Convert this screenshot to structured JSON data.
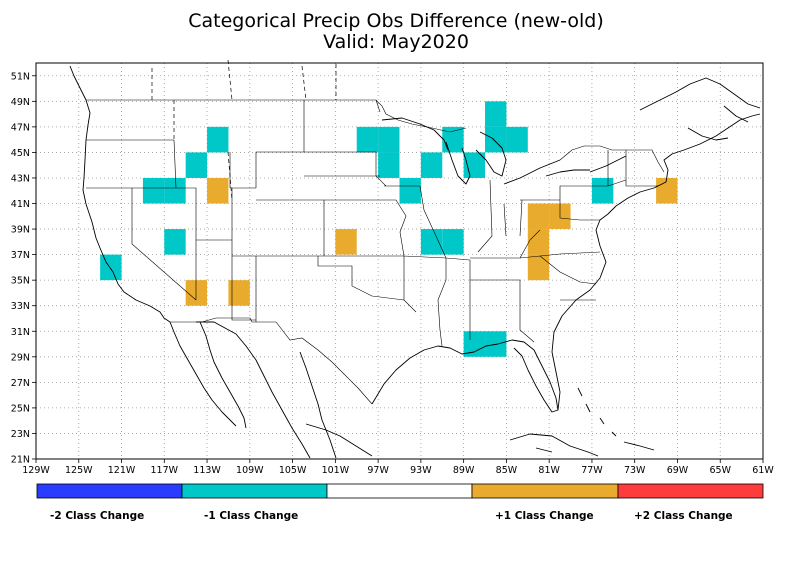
{
  "title_line1": "Categorical Precip Obs Difference (new-old)",
  "title_line2": "Valid: May2020",
  "map": {
    "lon_range": [
      -129,
      -61
    ],
    "lat_range": [
      21,
      52
    ],
    "lon_ticks": [
      "129W",
      "125W",
      "121W",
      "117W",
      "113W",
      "109W",
      "105W",
      "101W",
      "97W",
      "93W",
      "89W",
      "85W",
      "81W",
      "77W",
      "73W",
      "69W",
      "65W",
      "61W"
    ],
    "lat_ticks": [
      "21N",
      "23N",
      "25N",
      "27N",
      "29N",
      "31N",
      "33N",
      "35N",
      "37N",
      "39N",
      "41N",
      "43N",
      "45N",
      "47N",
      "49N",
      "51N"
    ],
    "grid": true
  },
  "colors": {
    "minus2": "#2a3cff",
    "minus1": "#00c8c8",
    "zero": "#ffffff",
    "plus1": "#e8ab2d",
    "plus2": "#ff3c3c"
  },
  "legend": {
    "labels": [
      "-2 Class Change",
      "-1 Class Change",
      "+1 Class Change",
      "+2 Class Change"
    ]
  },
  "cells": [
    {
      "lon": -122,
      "lat": 36,
      "change": -1
    },
    {
      "lon": -118,
      "lat": 42,
      "change": -1
    },
    {
      "lon": -116,
      "lat": 42,
      "change": -1
    },
    {
      "lon": -116,
      "lat": 38,
      "change": -1
    },
    {
      "lon": -114,
      "lat": 44,
      "change": -1
    },
    {
      "lon": -112,
      "lat": 46,
      "change": -1
    },
    {
      "lon": -112,
      "lat": 42,
      "change": 1
    },
    {
      "lon": -114,
      "lat": 34,
      "change": 1
    },
    {
      "lon": -110,
      "lat": 34,
      "change": 1
    },
    {
      "lon": -100,
      "lat": 38,
      "change": 1
    },
    {
      "lon": -98,
      "lat": 46,
      "change": -1
    },
    {
      "lon": -96,
      "lat": 46,
      "change": -1
    },
    {
      "lon": -96,
      "lat": 44,
      "change": -1
    },
    {
      "lon": -94,
      "lat": 42,
      "change": -1
    },
    {
      "lon": -92,
      "lat": 44,
      "change": -1
    },
    {
      "lon": -92,
      "lat": 38,
      "change": -1
    },
    {
      "lon": -90,
      "lat": 38,
      "change": -1
    },
    {
      "lon": -90,
      "lat": 46,
      "change": -1
    },
    {
      "lon": -88,
      "lat": 44,
      "change": -1
    },
    {
      "lon": -86,
      "lat": 48,
      "change": -1
    },
    {
      "lon": -86,
      "lat": 46,
      "change": -1
    },
    {
      "lon": -84,
      "lat": 46,
      "change": -1
    },
    {
      "lon": -88,
      "lat": 30,
      "change": -1
    },
    {
      "lon": -86,
      "lat": 30,
      "change": -1
    },
    {
      "lon": -82,
      "lat": 40,
      "change": 1
    },
    {
      "lon": -80,
      "lat": 40,
      "change": 1
    },
    {
      "lon": -82,
      "lat": 38,
      "change": 1
    },
    {
      "lon": -82,
      "lat": 36,
      "change": 1
    },
    {
      "lon": -76,
      "lat": 42,
      "change": -1
    },
    {
      "lon": -70,
      "lat": 42,
      "change": 1
    }
  ]
}
